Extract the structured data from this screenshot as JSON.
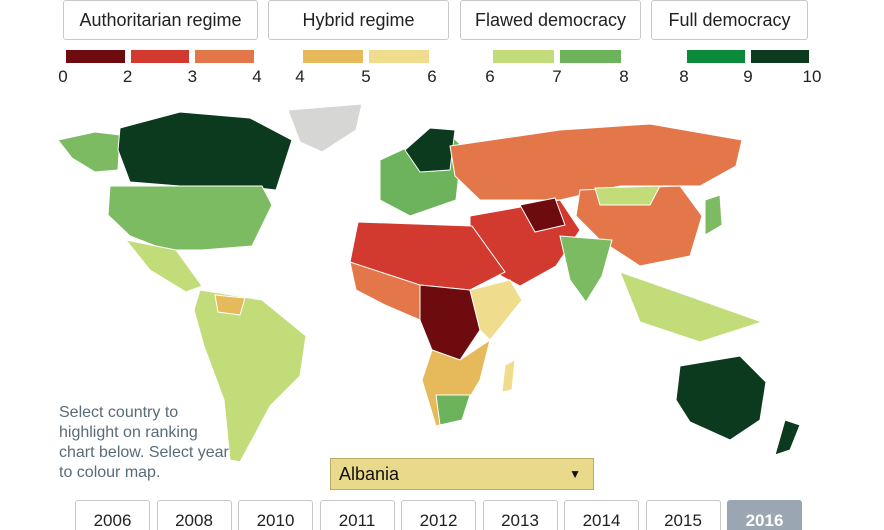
{
  "legend": [
    {
      "label": "Authoritarian regime",
      "swatches": [
        "#6e0b0e",
        "#d23a2f",
        "#e4774a"
      ],
      "ticks": [
        0,
        2,
        3,
        4
      ]
    },
    {
      "label": "Hybrid regime",
      "swatches": [
        "#e6b95a",
        "#efdc8c"
      ],
      "ticks": [
        4,
        5,
        6
      ]
    },
    {
      "label": "Flawed democracy",
      "swatches": [
        "#c2dc7a",
        "#6db35c"
      ],
      "ticks": [
        6,
        7,
        8
      ]
    },
    {
      "label": "Full democracy",
      "swatches": [
        "#0b8a3a",
        "#0c3a1e"
      ],
      "ticks": [
        8,
        9,
        10
      ]
    }
  ],
  "hint": "Select country to highlight on ranking chart below. Select year to colour map.",
  "dropdown": "Albania",
  "years": [
    {
      "label": 2006,
      "selected": false
    },
    {
      "label": 2008,
      "selected": false
    },
    {
      "label": 2010,
      "selected": false
    },
    {
      "label": 2011,
      "selected": false
    },
    {
      "label": 2012,
      "selected": false
    },
    {
      "label": 2013,
      "selected": false
    },
    {
      "label": 2014,
      "selected": false
    },
    {
      "label": 2015,
      "selected": false
    },
    {
      "label": 2016,
      "selected": true
    }
  ]
}
